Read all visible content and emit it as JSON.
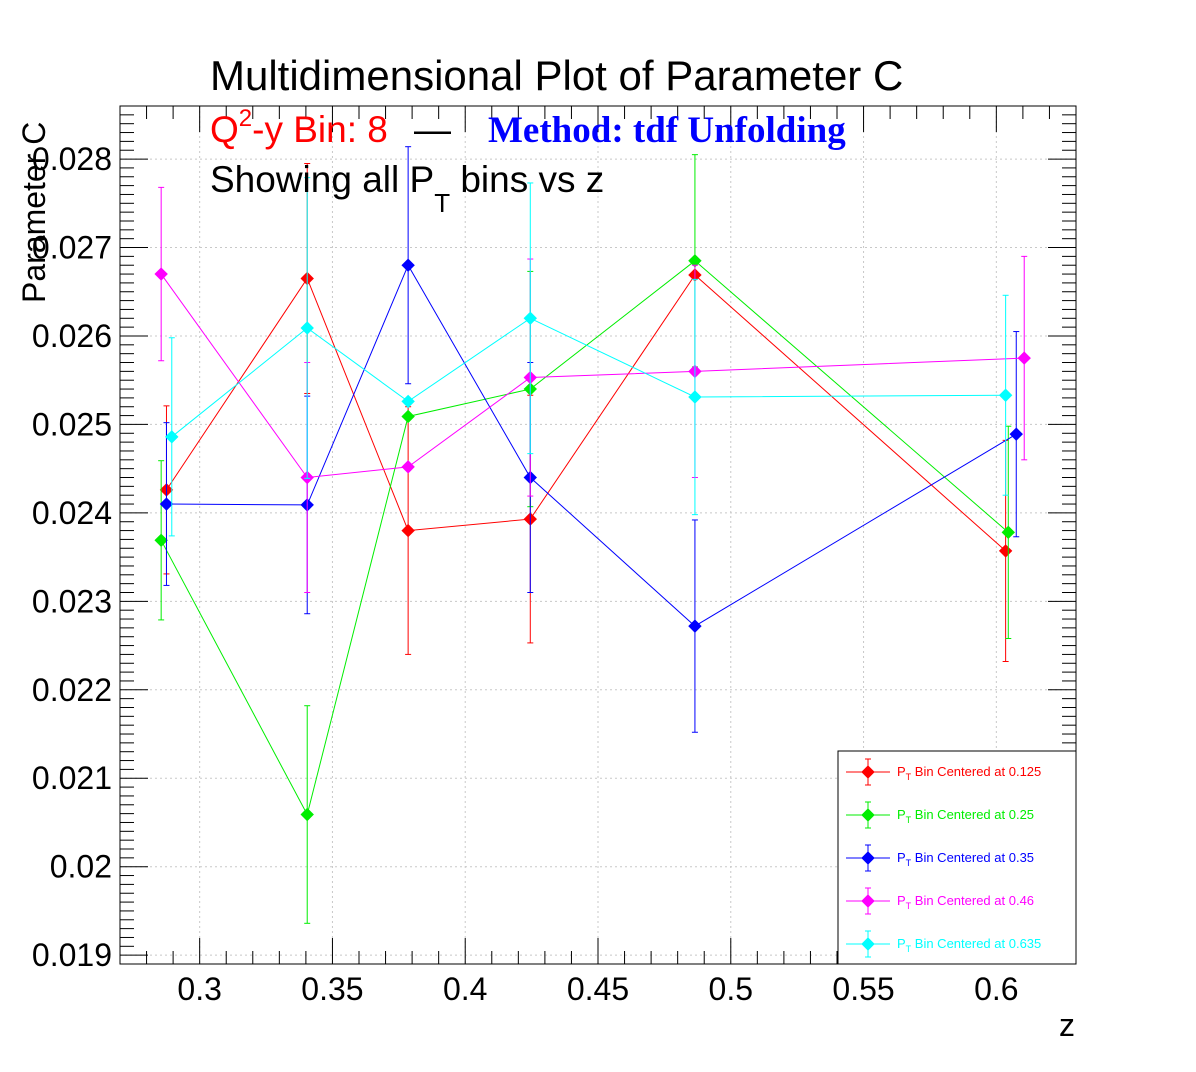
{
  "chart_data": {
    "type": "scatter",
    "title": "Multidimensional Plot of Parameter C",
    "subtitle": {
      "q2y_prefix": "Q",
      "q2y_sup": "2",
      "q2y_rest": "-y Bin: 8",
      "dash": "—",
      "method": "Method: tdf Unfolding",
      "line2_prefix": "Showing all P",
      "line2_sub": "T",
      "line2_rest": " bins vs z"
    },
    "xlabel": "z",
    "ylabel": "Parameter C",
    "xlim": [
      0.27,
      0.63
    ],
    "ylim": [
      0.0189,
      0.0286
    ],
    "x_ticks": [
      0.3,
      0.35,
      0.4,
      0.45,
      0.5,
      0.55,
      0.6
    ],
    "x_tick_labels": [
      "0.3",
      "0.35",
      "0.4",
      "0.45",
      "0.5",
      "0.55",
      "0.6"
    ],
    "y_ticks": [
      0.019,
      0.02,
      0.021,
      0.022,
      0.023,
      0.024,
      0.025,
      0.026,
      0.027,
      0.028
    ],
    "y_tick_labels": [
      "0.019",
      "0.02",
      "0.021",
      "0.022",
      "0.023",
      "0.024",
      "0.025",
      "0.026",
      "0.027",
      "0.028"
    ],
    "grid": true,
    "legend_placement": "bottom-right",
    "series": [
      {
        "name": "Bin Centered at 0.125",
        "legend_prefix": "P",
        "legend_sub": "T",
        "color": "#ff0000",
        "x": [
          0.2875,
          0.3405,
          0.3785,
          0.4245,
          0.4865,
          0.6035
        ],
        "y": [
          0.02426,
          0.02665,
          0.0238,
          0.02393,
          0.02669,
          0.02357
        ],
        "err": [
          0.00095,
          0.0013,
          0.0014,
          0.0014,
          0.0,
          0.00125
        ]
      },
      {
        "name": "Bin Centered at 0.25",
        "legend_prefix": "P",
        "legend_sub": "T",
        "color": "#00ee00",
        "x": [
          0.2855,
          0.3405,
          0.3785,
          0.4245,
          0.4865,
          0.6045
        ],
        "y": [
          0.02369,
          0.02059,
          0.02509,
          0.0254,
          0.02685,
          0.02378
        ],
        "err": [
          0.0009,
          0.00123,
          0.0,
          0.00133,
          0.0012,
          0.0012
        ]
      },
      {
        "name": "Bin Centered at 0.35",
        "legend_prefix": "P",
        "legend_sub": "T",
        "color": "#0000ff",
        "x": [
          0.2875,
          0.3405,
          0.3785,
          0.4245,
          0.4865,
          0.6075
        ],
        "y": [
          0.0241,
          0.02409,
          0.0268,
          0.0244,
          0.02272,
          0.02489
        ],
        "err": [
          0.00092,
          0.00123,
          0.00134,
          0.0013,
          0.0012,
          0.00116
        ]
      },
      {
        "name": "Bin Centered at 0.46",
        "legend_prefix": "P",
        "legend_sub": "T",
        "color": "#ff00ff",
        "x": [
          0.2855,
          0.3405,
          0.3785,
          0.4245,
          0.4865,
          0.6105
        ],
        "y": [
          0.0267,
          0.0244,
          0.02452,
          0.02553,
          0.0256,
          0.02575
        ],
        "err": [
          0.00098,
          0.0013,
          0.0,
          0.00134,
          0.0012,
          0.00115
        ]
      },
      {
        "name": "Bin Centered at 0.635",
        "legend_prefix": "P",
        "legend_sub": "T",
        "color": "#00ffff",
        "x": [
          0.2895,
          0.3405,
          0.3785,
          0.4245,
          0.4865,
          0.6035
        ],
        "y": [
          0.02486,
          0.02609,
          0.02526,
          0.0262,
          0.02531,
          0.02533
        ],
        "err": [
          0.00112,
          0.0017,
          0.0,
          0.00153,
          0.00133,
          0.00113
        ]
      }
    ]
  }
}
